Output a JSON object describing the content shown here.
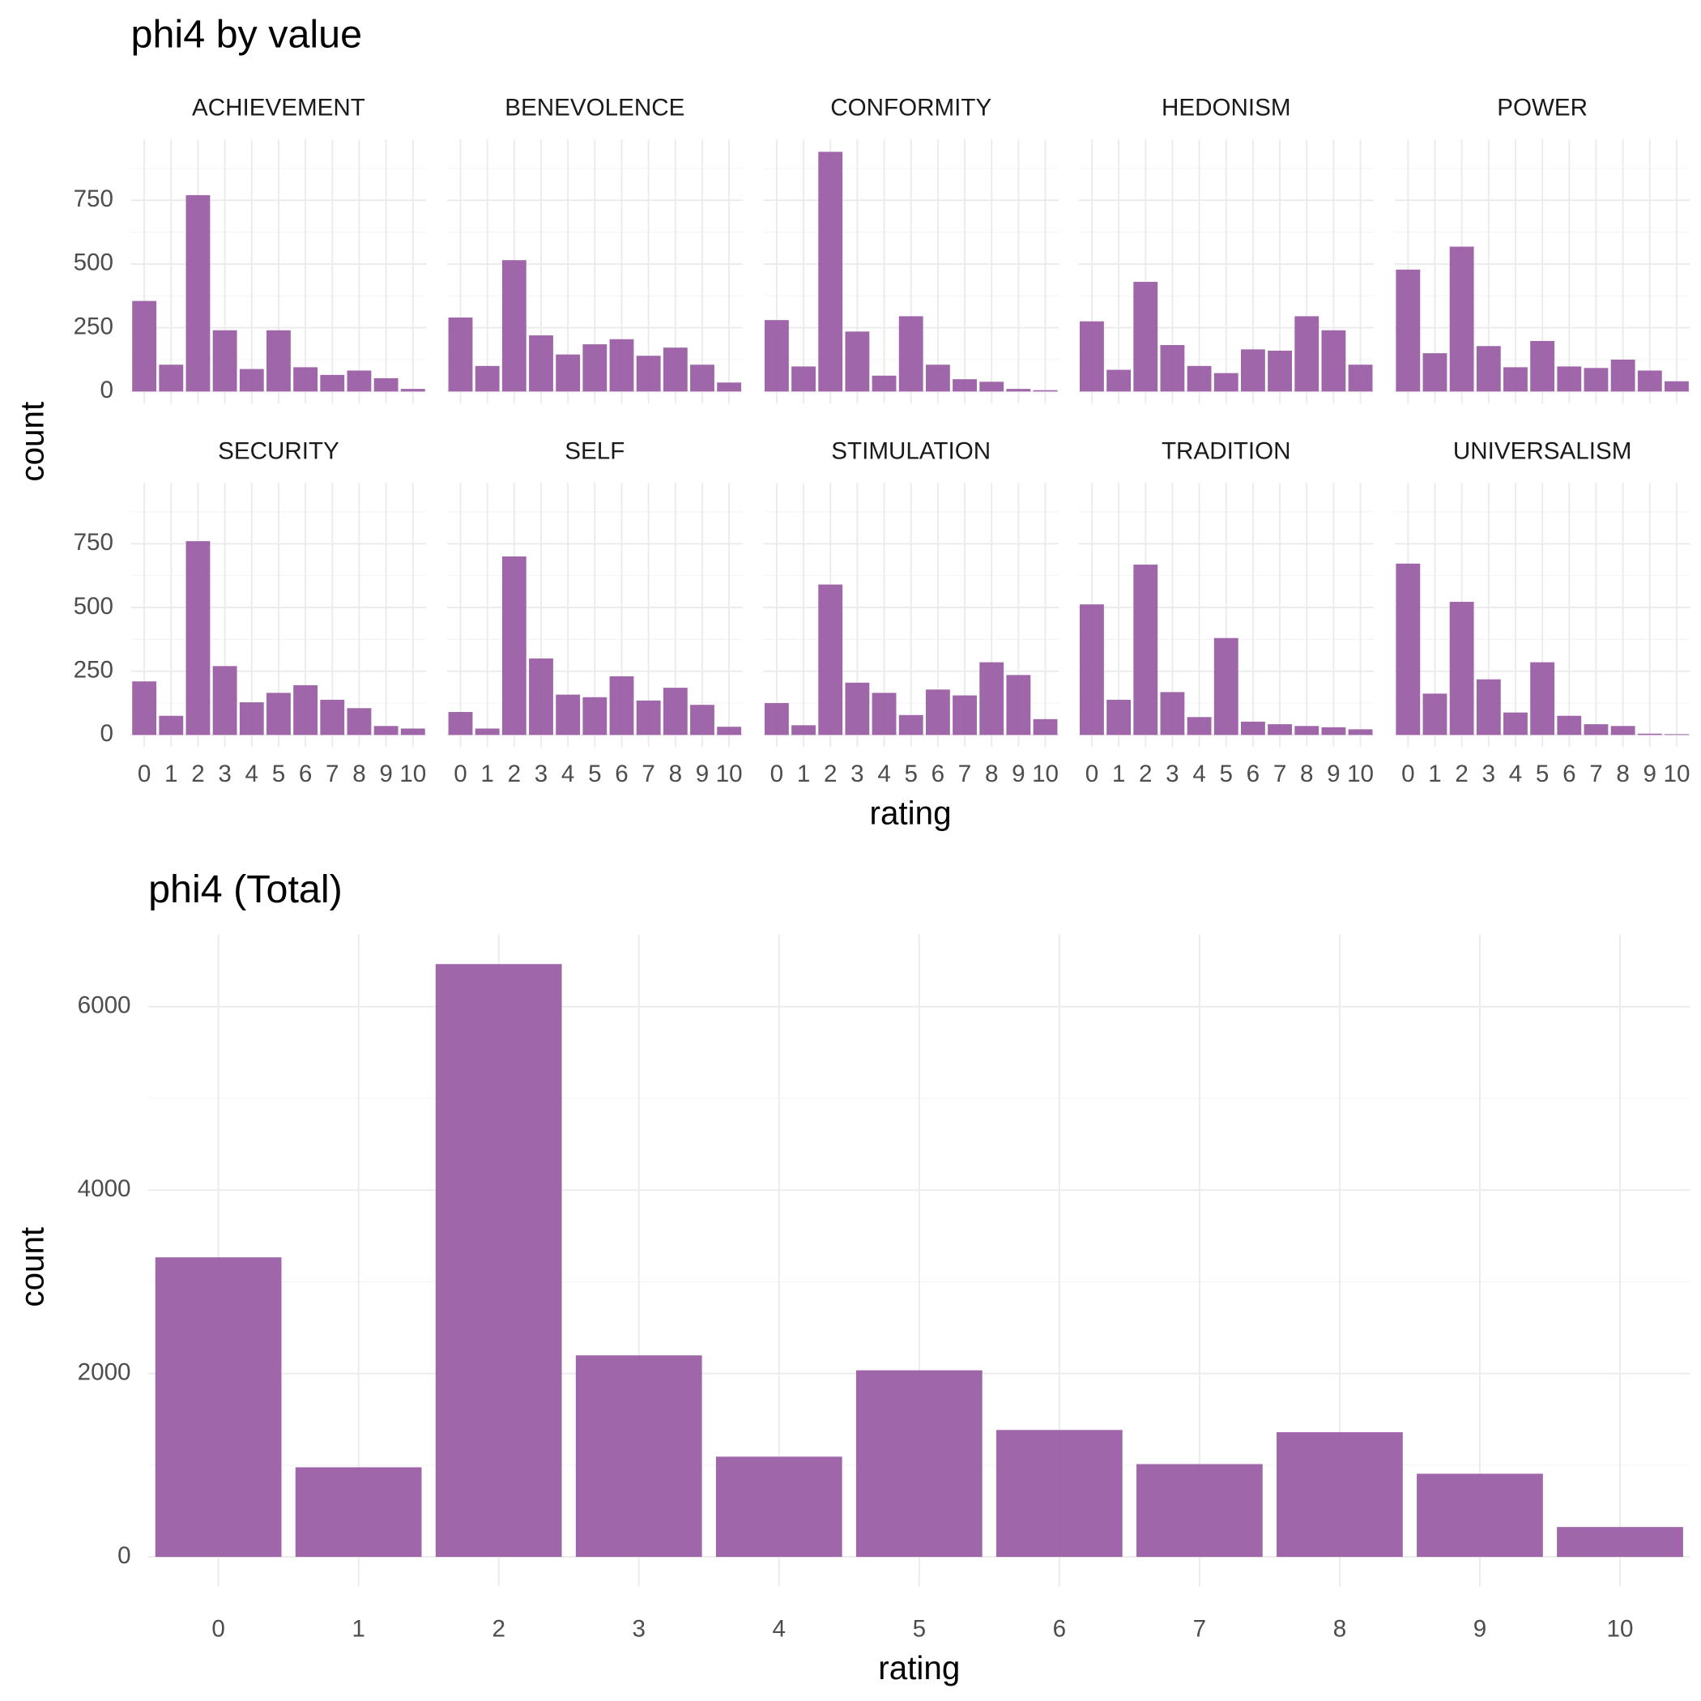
{
  "chart_data": [
    {
      "type": "facet-bar",
      "title": "phi4 by value",
      "x_label": "rating",
      "y_label": "count",
      "color": "#9a5ea4",
      "categories": [
        0,
        1,
        2,
        3,
        4,
        5,
        6,
        7,
        8,
        9,
        10
      ],
      "ylim": [
        -47,
        988
      ],
      "yticks": [
        0,
        250,
        500,
        750
      ],
      "grid": true,
      "panels": [
        {
          "name": "ACHIEVEMENT",
          "values": [
            355,
            105,
            770,
            240,
            88,
            240,
            95,
            65,
            82,
            52,
            10
          ]
        },
        {
          "name": "BENEVOLENCE",
          "values": [
            290,
            100,
            515,
            220,
            145,
            185,
            205,
            140,
            172,
            105,
            35
          ]
        },
        {
          "name": "CONFORMITY",
          "values": [
            280,
            98,
            940,
            235,
            62,
            295,
            105,
            48,
            38,
            10,
            5
          ]
        },
        {
          "name": "HEDONISM",
          "values": [
            275,
            85,
            430,
            182,
            100,
            72,
            165,
            160,
            295,
            240,
            105
          ]
        },
        {
          "name": "POWER",
          "values": [
            478,
            150,
            568,
            178,
            95,
            198,
            98,
            92,
            125,
            82,
            40
          ]
        },
        {
          "name": "SECURITY",
          "values": [
            210,
            75,
            760,
            270,
            128,
            165,
            195,
            138,
            105,
            35,
            25
          ]
        },
        {
          "name": "SELF",
          "values": [
            90,
            25,
            700,
            300,
            158,
            148,
            230,
            135,
            185,
            118,
            32
          ]
        },
        {
          "name": "STIMULATION",
          "values": [
            125,
            38,
            590,
            205,
            165,
            78,
            178,
            155,
            285,
            235,
            62
          ]
        },
        {
          "name": "TRADITION",
          "values": [
            512,
            138,
            668,
            168,
            70,
            380,
            52,
            42,
            35,
            30,
            22
          ]
        },
        {
          "name": "UNIVERSALISM",
          "values": [
            672,
            162,
            522,
            218,
            88,
            285,
            75,
            42,
            35,
            5,
            3
          ]
        }
      ]
    },
    {
      "type": "bar",
      "title": "phi4 (Total)",
      "x_label": "rating",
      "y_label": "count",
      "color": "#9a5ea4",
      "categories": [
        0,
        1,
        2,
        3,
        4,
        5,
        6,
        7,
        8,
        9,
        10
      ],
      "values": [
        3267,
        977,
        6465,
        2198,
        1093,
        2035,
        1384,
        1012,
        1360,
        907,
        326
      ],
      "ylim": [
        -323,
        6788
      ],
      "yticks": [
        0,
        2000,
        4000,
        6000
      ],
      "grid": true
    }
  ]
}
